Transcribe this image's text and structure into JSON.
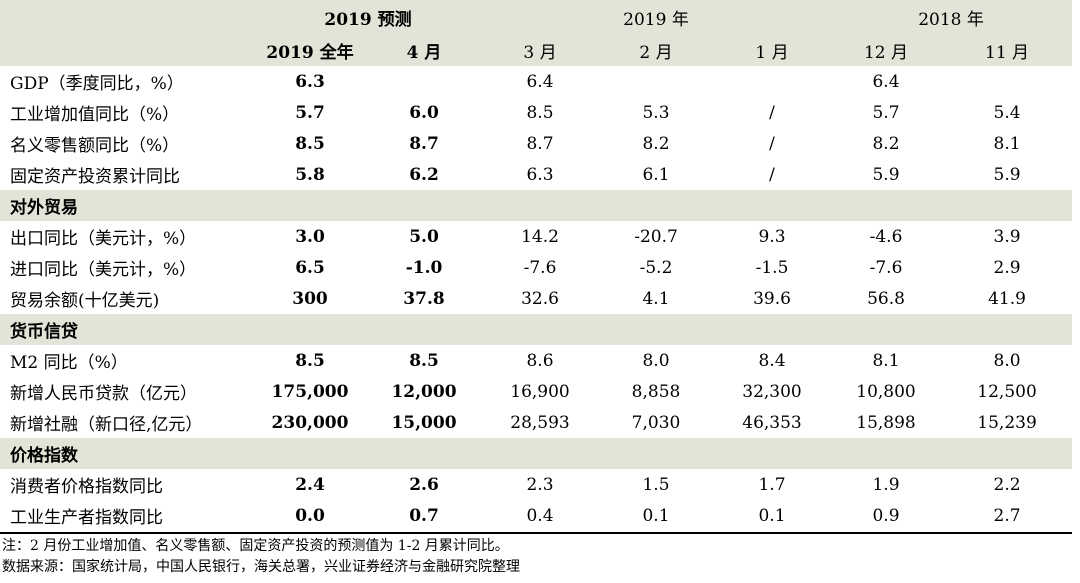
{
  "header": {
    "forecast_group": "2019 预测",
    "year2019_group": "2019 年",
    "year2018_group": "2018 年",
    "columns": [
      "2019 全年",
      "4 月",
      "3 月",
      "2 月",
      "1 月",
      "12 月",
      "11 月"
    ]
  },
  "rows": [
    {
      "label": "GDP（季度同比，%）",
      "values": [
        "6.3",
        "",
        "6.4",
        "",
        "",
        "6.4",
        ""
      ]
    },
    {
      "label": "工业增加值同比（%）",
      "values": [
        "5.7",
        "6.0",
        "8.5",
        "5.3",
        "/",
        "5.7",
        "5.4"
      ]
    },
    {
      "label": "名义零售额同比（%）",
      "values": [
        "8.5",
        "8.7",
        "8.7",
        "8.2",
        "/",
        "8.2",
        "8.1"
      ]
    },
    {
      "label": "固定资产投资累计同比",
      "values": [
        "5.8",
        "6.2",
        "6.3",
        "6.1",
        "/",
        "5.9",
        "5.9"
      ]
    }
  ],
  "section_trade": {
    "title": "对外贸易",
    "rows": [
      {
        "label": "出口同比（美元计，%）",
        "values": [
          "3.0",
          "5.0",
          "14.2",
          "-20.7",
          "9.3",
          "-4.6",
          "3.9"
        ]
      },
      {
        "label": "进口同比（美元计，%）",
        "values": [
          "6.5",
          "-1.0",
          "-7.6",
          "-5.2",
          "-1.5",
          "-7.6",
          "2.9"
        ]
      },
      {
        "label": "贸易余额(十亿美元)",
        "values": [
          "300",
          "37.8",
          "32.6",
          "4.1",
          "39.6",
          "56.8",
          "41.9"
        ]
      }
    ]
  },
  "section_credit": {
    "title": "货币信贷",
    "rows": [
      {
        "label": "M2 同比（%）",
        "values": [
          "8.5",
          "8.5",
          "8.6",
          "8.0",
          "8.4",
          "8.1",
          "8.0"
        ]
      },
      {
        "label": "新增人民币贷款（亿元）",
        "values": [
          "175,000",
          "12,000",
          "16,900",
          "8,858",
          "32,300",
          "10,800",
          "12,500"
        ]
      },
      {
        "label": "新增社融（新口径,亿元）",
        "values": [
          "230,000",
          "15,000",
          "28,593",
          "7,030",
          "46,353",
          "15,898",
          "15,239"
        ]
      }
    ]
  },
  "section_price": {
    "title": "价格指数",
    "rows": [
      {
        "label": "消费者价格指数同比",
        "values": [
          "2.4",
          "2.6",
          "2.3",
          "1.5",
          "1.7",
          "1.9",
          "2.2"
        ]
      },
      {
        "label": "工业生产者指数同比",
        "values": [
          "0.0",
          "0.7",
          "0.4",
          "0.1",
          "0.1",
          "0.9",
          "2.7"
        ]
      }
    ]
  },
  "notes": {
    "note": "注：2 月份工业增加值、名义零售额、固定资产投资的预测值为 1-2 月累计同比。",
    "source": "数据来源：国家统计局，中国人民银行，海关总署，兴业证券经济与金融研究院整理"
  }
}
